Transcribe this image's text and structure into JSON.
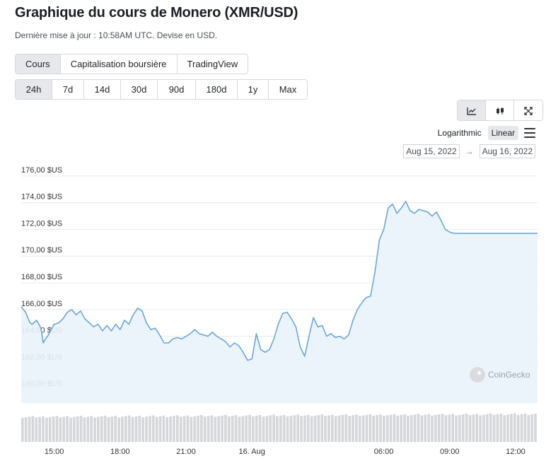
{
  "page": {
    "title": "Graphique du cours de Monero (XMR/USD)",
    "subtitle": "Dernière mise à jour : 10:58AM UTC. Devise en USD."
  },
  "tabs": [
    {
      "label": "Cours",
      "active": true
    },
    {
      "label": "Capitalisation boursière",
      "active": false
    },
    {
      "label": "TradingView",
      "active": false
    }
  ],
  "ranges": [
    {
      "label": "24h",
      "active": true
    },
    {
      "label": "7d",
      "active": false
    },
    {
      "label": "14d",
      "active": false
    },
    {
      "label": "30d",
      "active": false
    },
    {
      "label": "90d",
      "active": false
    },
    {
      "label": "180d",
      "active": false
    },
    {
      "label": "1y",
      "active": false
    },
    {
      "label": "Max",
      "active": false
    }
  ],
  "chart_types": [
    {
      "icon": "line-chart-icon",
      "active": true
    },
    {
      "icon": "candlestick-icon",
      "active": false
    },
    {
      "icon": "expand-icon",
      "active": false
    }
  ],
  "scale": {
    "logarithmic": "Logarithmic",
    "linear": "Linear",
    "active": "linear"
  },
  "date_range": {
    "from": "Aug 15, 2022",
    "to": "Aug 16, 2022",
    "arrow": "→"
  },
  "watermark": "CoinGecko",
  "colors": {
    "line": "#6aa6d9",
    "fill": "#eaf3fb",
    "grid": "#e8eaed",
    "volume": "#d4d6d9"
  },
  "chart_data": {
    "type": "area",
    "title": "",
    "xlabel": "",
    "ylabel": "",
    "ylim": [
      159,
      177
    ],
    "x_range_hours": [
      13.5,
      12.5
    ],
    "y_ticks": [
      {
        "value": 176,
        "label": "176,00 $US"
      },
      {
        "value": 174,
        "label": "174,00 $US"
      },
      {
        "value": 172,
        "label": "172,00 $US"
      },
      {
        "value": 170,
        "label": "170,00 $US"
      },
      {
        "value": 168,
        "label": "168,00 $US"
      },
      {
        "value": 166,
        "label": "166,00 $US"
      },
      {
        "value": 164,
        "label": "164,00 $US"
      },
      {
        "value": 162,
        "label": "162,00 $US"
      },
      {
        "value": 160,
        "label": "160,00 $US"
      }
    ],
    "x_ticks": [
      {
        "hour": 15,
        "label": "15:00"
      },
      {
        "hour": 18,
        "label": "18:00"
      },
      {
        "hour": 21,
        "label": "21:00"
      },
      {
        "hour": 24,
        "label": "16. Aug"
      },
      {
        "hour": 30,
        "label": "06:00"
      },
      {
        "hour": 33,
        "label": "09:00"
      },
      {
        "hour": 36,
        "label": "12:00"
      }
    ],
    "grid": true,
    "legend": "none",
    "series": [
      {
        "x": [
          13.5,
          13.7,
          13.9,
          14.0,
          14.2,
          14.4,
          14.5,
          14.6,
          14.7,
          14.8,
          15.0,
          15.2,
          15.4,
          15.6,
          15.8,
          16.0,
          16.2,
          16.4,
          16.6,
          16.8,
          17.0,
          17.2,
          17.4,
          17.6,
          17.8,
          18.0,
          18.2,
          18.4,
          18.6,
          18.8,
          19.0,
          19.2,
          19.4,
          19.6,
          19.8,
          20.0,
          20.2,
          20.4,
          20.6,
          20.8,
          21.0,
          21.2,
          21.4,
          21.6,
          21.8,
          22.0,
          22.2,
          22.4,
          22.6,
          22.8,
          23.0,
          23.2,
          23.4,
          23.6,
          23.8,
          24.0,
          24.2,
          24.4,
          24.6,
          24.8,
          25.0,
          25.2,
          25.4,
          25.6,
          25.8,
          26.0,
          26.2,
          26.4,
          26.6,
          26.8,
          27.0,
          27.2,
          27.4,
          27.6,
          27.8,
          28.0,
          28.2,
          28.4,
          28.6,
          28.8,
          29.0,
          29.2,
          29.4,
          29.6,
          29.8,
          30.0,
          30.2,
          30.4,
          30.6,
          30.8,
          31.0,
          31.2,
          31.4,
          31.6,
          31.8,
          32.0,
          32.2,
          32.4,
          32.6,
          32.8,
          33.0,
          33.2,
          33.4,
          33.6,
          33.8,
          34.0,
          34.2,
          34.4,
          34.6,
          34.8,
          35.0,
          35.2,
          35.4,
          35.6,
          35.8,
          36.0,
          36.2,
          36.4,
          36.6,
          36.8,
          37.0
        ],
        "values": [
          166.2,
          165.8,
          165.0,
          164.9,
          165.2,
          164.6,
          163.5,
          163.8,
          164.0,
          164.3,
          164.9,
          165.0,
          165.3,
          165.8,
          166.0,
          165.6,
          165.9,
          165.3,
          165.0,
          164.7,
          164.9,
          164.4,
          164.8,
          164.4,
          164.9,
          164.5,
          165.2,
          164.9,
          165.6,
          166.1,
          165.9,
          165.0,
          164.5,
          164.6,
          164.1,
          163.5,
          163.5,
          163.8,
          163.9,
          163.8,
          164.0,
          164.2,
          164.5,
          164.2,
          164.1,
          164.0,
          164.3,
          164.0,
          163.8,
          163.6,
          163.2,
          163.5,
          163.3,
          162.8,
          162.2,
          162.3,
          164.2,
          163.0,
          162.8,
          163.0,
          163.8,
          164.9,
          165.7,
          165.8,
          165.3,
          164.7,
          163.2,
          162.5,
          164.0,
          165.4,
          164.7,
          164.8,
          164.0,
          164.2,
          163.9,
          164.0,
          163.8,
          164.1,
          165.2,
          166.0,
          166.5,
          166.9,
          167.0,
          168.8,
          171.2,
          172.0,
          173.6,
          173.9,
          173.2,
          173.6,
          174.1,
          173.4,
          173.2,
          173.5,
          173.4,
          173.3,
          173.0,
          173.3,
          172.7,
          172.0,
          171.8,
          171.7,
          171.7,
          171.7,
          171.7,
          171.7,
          171.7,
          171.7,
          171.7,
          171.7,
          171.7,
          171.7,
          171.7,
          171.7,
          171.7,
          171.7,
          171.7,
          171.7,
          171.7,
          171.7,
          171.7
        ]
      }
    ]
  }
}
